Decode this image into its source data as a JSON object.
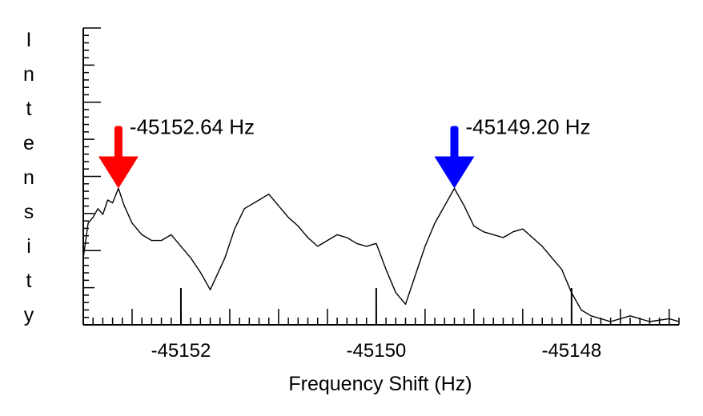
{
  "chart_data": {
    "type": "line",
    "title": "",
    "xlabel": "Frequency Shift (Hz)",
    "ylabel": "Intensity",
    "xlim": [
      -45153.0,
      -45146.9
    ],
    "ylim": [
      0,
      1
    ],
    "x_ticks": [
      -45152,
      -45150,
      -45148
    ],
    "x_tick_labels": [
      "-45152",
      "-45150",
      "-45148"
    ],
    "grid": false,
    "legend": "none",
    "series": [
      {
        "color": "#000000",
        "x": [
          -45153.0,
          -45152.95,
          -45152.9,
          -45152.85,
          -45152.8,
          -45152.75,
          -45152.7,
          -45152.64,
          -45152.58,
          -45152.5,
          -45152.4,
          -45152.3,
          -45152.2,
          -45152.1,
          -45152.0,
          -45151.9,
          -45151.8,
          -45151.7,
          -45151.55,
          -45151.45,
          -45151.35,
          -45151.2,
          -45151.1,
          -45151.0,
          -45150.9,
          -45150.8,
          -45150.7,
          -45150.6,
          -45150.5,
          -45150.4,
          -45150.3,
          -45150.2,
          -45150.1,
          -45150.0,
          -45149.9,
          -45149.8,
          -45149.7,
          -45149.6,
          -45149.5,
          -45149.4,
          -45149.3,
          -45149.2,
          -45149.1,
          -45149.0,
          -45148.9,
          -45148.8,
          -45148.7,
          -45148.6,
          -45148.5,
          -45148.4,
          -45148.3,
          -45148.2,
          -45148.1,
          -45148.0,
          -45147.9,
          -45147.8,
          -45147.6,
          -45147.4,
          -45147.2,
          -45147.0,
          -45146.9
        ],
        "y": [
          0.22,
          0.34,
          0.36,
          0.39,
          0.37,
          0.42,
          0.41,
          0.46,
          0.4,
          0.34,
          0.3,
          0.28,
          0.28,
          0.3,
          0.26,
          0.22,
          0.17,
          0.11,
          0.22,
          0.32,
          0.39,
          0.42,
          0.44,
          0.4,
          0.36,
          0.33,
          0.29,
          0.26,
          0.28,
          0.3,
          0.29,
          0.27,
          0.26,
          0.27,
          0.18,
          0.1,
          0.06,
          0.16,
          0.26,
          0.34,
          0.4,
          0.46,
          0.4,
          0.33,
          0.31,
          0.3,
          0.29,
          0.31,
          0.32,
          0.29,
          0.26,
          0.22,
          0.18,
          0.1,
          0.04,
          0.02,
          0.0,
          0.02,
          0.0,
          0.01,
          0.0
        ]
      }
    ],
    "annotations": [
      {
        "text": "-45152.64 Hz",
        "x": -45152.64,
        "y": 0.46,
        "arrow_color": "#ff0000"
      },
      {
        "text": "-45149.20 Hz",
        "x": -45149.2,
        "y": 0.46,
        "arrow_color": "#0000ff"
      }
    ]
  }
}
